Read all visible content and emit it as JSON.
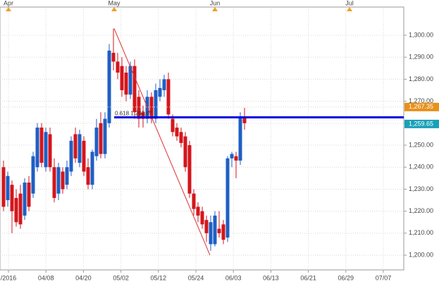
{
  "chart_data": {
    "type": "candlestick",
    "months": [
      "Apr",
      "May",
      "Jun",
      "Jul"
    ],
    "x_labels": [
      "/2016",
      "04/08",
      "04/20",
      "05/02",
      "05/12",
      "05/24",
      "06/03",
      "06/13",
      "06/21",
      "06/29",
      "07/07"
    ],
    "up_color": "#1f5fc4",
    "down_color": "#d3161c",
    "open": [
      1240,
      1225,
      1232,
      1226,
      1228,
      1218,
      1233,
      1228,
      1240,
      1258,
      1240,
      1255,
      1240,
      1228,
      1238,
      1232,
      1238,
      1255,
      1242,
      1252,
      1240,
      1232,
      1245,
      1260,
      1246,
      1260,
      1292,
      1288,
      1286,
      1283,
      1273,
      1286,
      1272,
      1265,
      1262,
      1272,
      1262,
      1272,
      1275,
      1280,
      1262,
      1258,
      1256,
      1254,
      1250,
      1228,
      1222,
      1220,
      1216,
      1205,
      1205,
      1212,
      1214,
      1208,
      1244,
      1245,
      1243,
      1263
    ],
    "high": [
      1243,
      1238,
      1234,
      1230,
      1232,
      1235,
      1236,
      1247,
      1260,
      1260,
      1258,
      1258,
      1244,
      1242,
      1240,
      1243,
      1254,
      1258,
      1257,
      1254,
      1244,
      1248,
      1262,
      1265,
      1265,
      1296,
      1303,
      1292,
      1290,
      1286,
      1288,
      1289,
      1275,
      1268,
      1275,
      1274,
      1278,
      1280,
      1282,
      1283,
      1264,
      1260,
      1258,
      1256,
      1252,
      1230,
      1224,
      1222,
      1218,
      1218,
      1220,
      1220,
      1216,
      1245,
      1247,
      1247,
      1265,
      1267
    ],
    "low": [
      1220,
      1222,
      1210,
      1213,
      1212,
      1216,
      1220,
      1226,
      1238,
      1240,
      1238,
      1238,
      1224,
      1225,
      1228,
      1230,
      1236,
      1242,
      1240,
      1236,
      1230,
      1230,
      1243,
      1244,
      1244,
      1258,
      1284,
      1280,
      1272,
      1270,
      1271,
      1262,
      1258,
      1258,
      1260,
      1260,
      1260,
      1270,
      1272,
      1262,
      1254,
      1252,
      1249,
      1238,
      1226,
      1218,
      1215,
      1212,
      1206,
      1202,
      1204,
      1208,
      1205,
      1206,
      1240,
      1235,
      1241,
      1257
    ],
    "close": [
      1222,
      1236,
      1220,
      1215,
      1214,
      1233,
      1222,
      1245,
      1258,
      1242,
      1256,
      1240,
      1226,
      1240,
      1230,
      1240,
      1252,
      1244,
      1255,
      1238,
      1232,
      1247,
      1258,
      1246,
      1262,
      1293,
      1288,
      1283,
      1275,
      1273,
      1286,
      1265,
      1262,
      1262,
      1272,
      1262,
      1275,
      1276,
      1280,
      1264,
      1256,
      1254,
      1251,
      1240,
      1228,
      1221,
      1218,
      1214,
      1210,
      1215,
      1218,
      1210,
      1207,
      1244,
      1246,
      1243,
      1263,
      1260
    ],
    "ylim": [
      1193.3,
      1312.8
    ],
    "yticks": [
      {
        "value": 1200,
        "label": "1,200.00"
      },
      {
        "value": 1210,
        "label": "1,210.00"
      },
      {
        "value": 1220,
        "label": "1,220.00"
      },
      {
        "value": 1230,
        "label": "1,230.00"
      },
      {
        "value": 1240,
        "label": "1,240.00"
      },
      {
        "value": 1250,
        "label": "1,250.00"
      },
      {
        "value": 1260,
        "label": "1,260.00"
      },
      {
        "value": 1270,
        "label": "1,270.00"
      },
      {
        "value": 1280,
        "label": "1,280.00"
      },
      {
        "value": 1290,
        "label": "1,290.00"
      },
      {
        "value": 1300,
        "label": "1,300.00"
      }
    ],
    "fib_level": {
      "value": 1262.67,
      "label": "0.618 1,262.67",
      "color": "#0000dd"
    },
    "trendline": {
      "start": 1303,
      "end": 1200,
      "color": "#e03030"
    },
    "price_tags": [
      {
        "value": 1267.35,
        "label": "1,267.35",
        "color": "#e8901a"
      },
      {
        "value": 1259.65,
        "label": "1,259.65",
        "color": "#1aa0b8"
      }
    ]
  }
}
